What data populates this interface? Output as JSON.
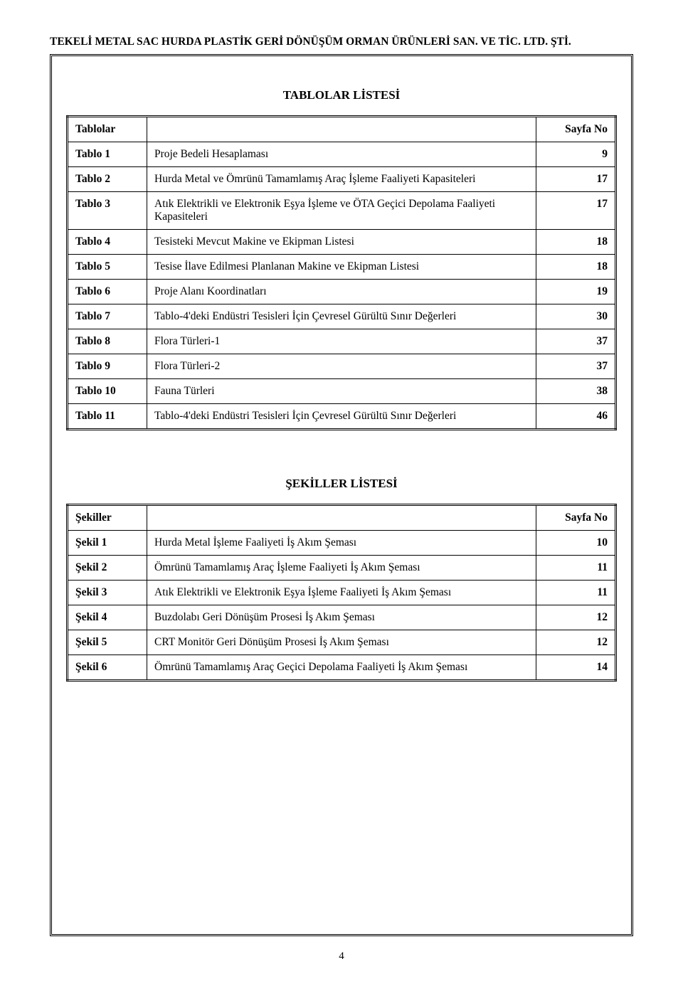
{
  "header": {
    "company": "TEKELİ METAL SAC HURDA PLASTİK GERİ DÖNÜŞÜM ORMAN ÜRÜNLERİ SAN. VE TİC. LTD. ŞTİ."
  },
  "tables_section": {
    "title": "TABLOLAR LİSTESİ",
    "header_label": "Tablolar",
    "header_page": "Sayfa No",
    "rows": [
      {
        "label": "Tablo 1",
        "desc": "Proje Bedeli Hesaplaması",
        "page": "9"
      },
      {
        "label": "Tablo 2",
        "desc": "Hurda Metal ve Ömrünü Tamamlamış Araç İşleme Faaliyeti Kapasiteleri",
        "page": "17"
      },
      {
        "label": "Tablo 3",
        "desc": "Atık Elektrikli ve Elektronik Eşya İşleme ve ÖTA Geçici Depolama Faaliyeti Kapasiteleri",
        "page": "17"
      },
      {
        "label": "Tablo 4",
        "desc": "Tesisteki Mevcut Makine ve Ekipman Listesi",
        "page": "18",
        "small": true
      },
      {
        "label": "Tablo 5",
        "desc": "Tesise İlave Edilmesi Planlanan Makine ve Ekipman Listesi",
        "page": "18"
      },
      {
        "label": "Tablo 6",
        "desc": "Proje Alanı Koordinatları",
        "page": "19"
      },
      {
        "label": "Tablo 7",
        "desc": "Tablo-4'deki Endüstri Tesisleri İçin Çevresel Gürültü Sınır Değerleri",
        "page": "30"
      },
      {
        "label": "Tablo 8",
        "desc": "Flora Türleri-1",
        "page": "37"
      },
      {
        "label": "Tablo 9",
        "desc": "Flora Türleri-2",
        "page": "37"
      },
      {
        "label": "Tablo 10",
        "desc": "Fauna Türleri",
        "page": "38"
      },
      {
        "label": "Tablo 11",
        "desc": "Tablo-4'deki Endüstri Tesisleri İçin Çevresel Gürültü Sınır Değerleri",
        "page": "46"
      }
    ]
  },
  "figures_section": {
    "title": "ŞEKİLLER LİSTESİ",
    "header_label": "Şekiller",
    "header_page": "Sayfa No",
    "rows": [
      {
        "label": "Şekil 1",
        "desc": "Hurda Metal İşleme Faaliyeti İş Akım Şeması",
        "page": "10"
      },
      {
        "label": "Şekil 2",
        "desc": "Ömrünü Tamamlamış Araç İşleme Faaliyeti İş Akım Şeması",
        "page": "11"
      },
      {
        "label": "Şekil 3",
        "desc": "Atık Elektrikli ve Elektronik Eşya İşleme Faaliyeti İş Akım Şeması",
        "page": "11"
      },
      {
        "label": "Şekil 4",
        "desc": "Buzdolabı Geri Dönüşüm Prosesi İş Akım Şeması",
        "page": "12"
      },
      {
        "label": "Şekil 5",
        "desc": "CRT Monitör Geri Dönüşüm Prosesi İş Akım Şeması",
        "page": "12"
      },
      {
        "label": "Şekil 6",
        "desc": "Ömrünü Tamamlamış Araç Geçici Depolama Faaliyeti İş Akım Şeması",
        "page": "14"
      }
    ]
  },
  "page_number": "4"
}
